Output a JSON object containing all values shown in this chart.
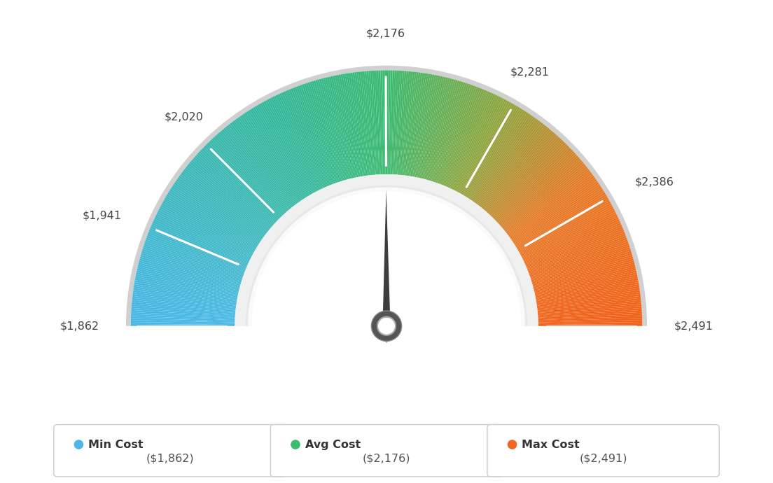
{
  "min_val": 1862,
  "avg_val": 2176,
  "max_val": 2491,
  "tick_labels": [
    "$1,862",
    "$1,941",
    "$2,020",
    "$2,176",
    "$2,281",
    "$2,386",
    "$2,491"
  ],
  "tick_values": [
    1862,
    1941,
    2020,
    2176,
    2281,
    2386,
    2491
  ],
  "legend_labels": [
    "Min Cost",
    "Avg Cost",
    "Max Cost"
  ],
  "legend_values": [
    "($1,862)",
    "($2,176)",
    "($2,491)"
  ],
  "legend_colors": [
    "#4db8e8",
    "#3dbb6e",
    "#f26522"
  ],
  "bg_color": "#ffffff",
  "color_stops": [
    [
      0.0,
      [
        0.29,
        0.72,
        0.91
      ]
    ],
    [
      0.35,
      [
        0.2,
        0.72,
        0.6
      ]
    ],
    [
      0.5,
      [
        0.24,
        0.73,
        0.44
      ]
    ],
    [
      0.65,
      [
        0.55,
        0.65,
        0.25
      ]
    ],
    [
      0.8,
      [
        0.9,
        0.48,
        0.15
      ]
    ],
    [
      1.0,
      [
        0.95,
        0.38,
        0.1
      ]
    ]
  ]
}
